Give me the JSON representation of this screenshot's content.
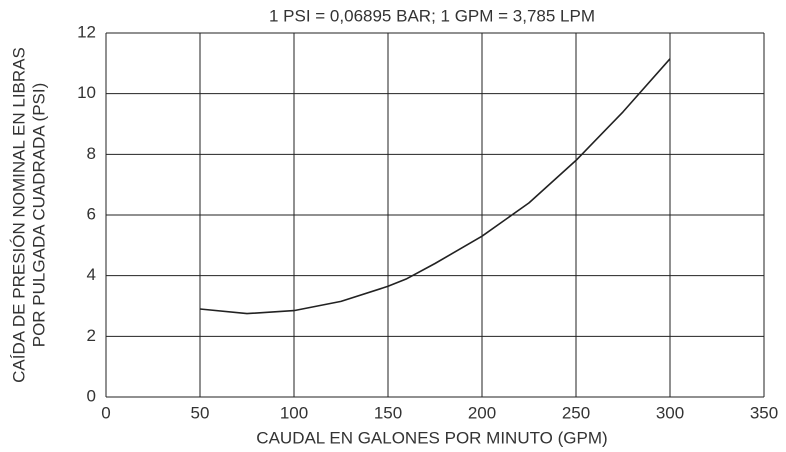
{
  "chart_data": {
    "type": "line",
    "title": "1 PSI = 0,06895 BAR; 1 GPM = 3,785 LPM",
    "y_label": [
      "CAÍDA DE PRESIÓN NOMINAL EN LIBRAS",
      "POR PULGADA CUADRADA (PSI)"
    ],
    "x_label": "CAUDAL EN GALONES POR MINUTO (GPM)",
    "x": [
      50,
      75,
      100,
      125,
      150,
      160,
      175,
      200,
      225,
      250,
      275,
      300
    ],
    "values": [
      2.9,
      2.75,
      2.85,
      3.15,
      3.65,
      3.9,
      4.4,
      5.3,
      6.4,
      7.8,
      9.4,
      11.15
    ],
    "color": "#222222",
    "xlim": [
      0,
      350
    ],
    "xticks": [
      0,
      50,
      100,
      150,
      200,
      250,
      300,
      350
    ],
    "ylim": [
      0,
      12
    ],
    "yticks": [
      0,
      2,
      4,
      6,
      8,
      10,
      12
    ],
    "grid": true
  }
}
